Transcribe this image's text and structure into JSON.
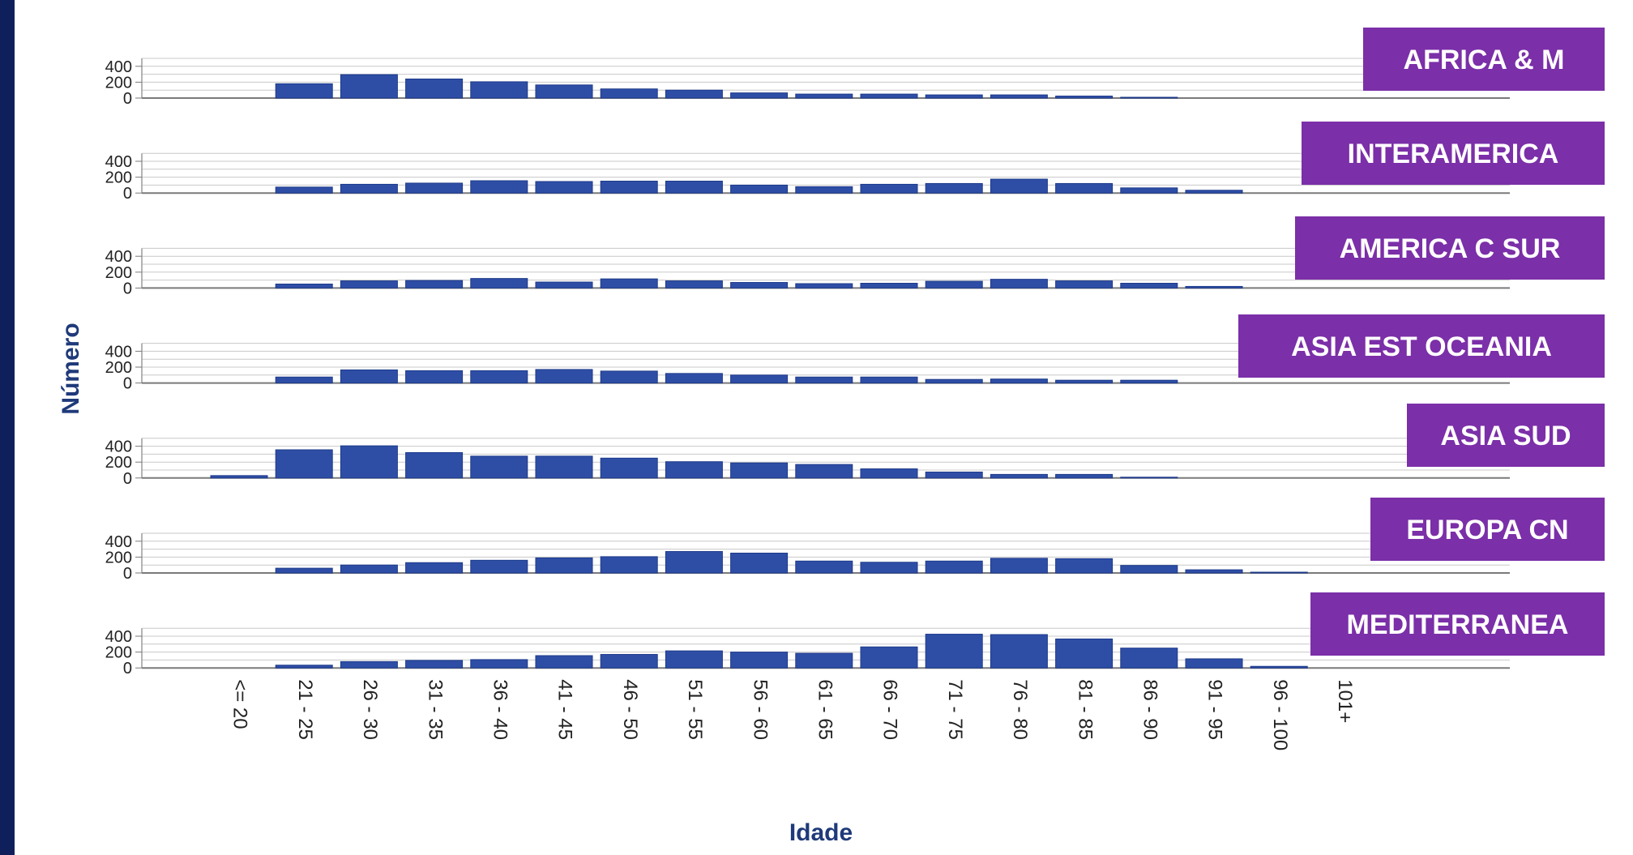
{
  "colors": {
    "bar": "#2e4ea6",
    "bar_stroke": "#1d3a8a",
    "label_bg": "#7b2fa8",
    "label_text": "#ffffff",
    "axis_title": "#1f3a7a",
    "frame": "#0f1f5c",
    "grid": "#c8c8c8"
  },
  "chart_data": {
    "type": "bar",
    "xlabel": "Idade",
    "ylabel": "Número",
    "categories": [
      "<= 20",
      "21 - 25",
      "26 - 30",
      "31 - 35",
      "36 - 40",
      "41 - 45",
      "46 - 50",
      "51 - 55",
      "56 - 60",
      "61 - 65",
      "66 - 70",
      "71 - 75",
      "76 - 80",
      "81 - 85",
      "86 - 90",
      "91 - 95",
      "96 - 100",
      "101+"
    ],
    "ylim": [
      0,
      500
    ],
    "yticks": [
      0,
      200,
      400
    ],
    "grid": true,
    "panels": [
      {
        "name": "AFRICA & M",
        "values": [
          0,
          180,
          295,
          240,
          205,
          165,
          115,
          100,
          65,
          50,
          50,
          40,
          40,
          25,
          10,
          0,
          0,
          0
        ]
      },
      {
        "name": "INTERAMERICA",
        "values": [
          0,
          75,
          110,
          125,
          155,
          145,
          150,
          150,
          100,
          80,
          110,
          120,
          175,
          120,
          65,
          35,
          0,
          0
        ]
      },
      {
        "name": "AMERICA C SUR",
        "values": [
          0,
          50,
          90,
          95,
          120,
          75,
          115,
          90,
          70,
          55,
          60,
          85,
          110,
          90,
          60,
          20,
          0,
          0
        ]
      },
      {
        "name": "ASIA EST OCEANIA",
        "values": [
          0,
          75,
          165,
          155,
          155,
          170,
          150,
          120,
          100,
          75,
          75,
          45,
          50,
          35,
          35,
          0,
          0,
          0
        ]
      },
      {
        "name": "ASIA SUD",
        "values": [
          30,
          355,
          405,
          320,
          275,
          275,
          250,
          205,
          190,
          170,
          115,
          75,
          45,
          45,
          10,
          0,
          0,
          0
        ]
      },
      {
        "name": "EUROPA CN",
        "values": [
          0,
          60,
          100,
          130,
          160,
          190,
          205,
          270,
          250,
          150,
          135,
          150,
          185,
          180,
          95,
          40,
          10,
          0
        ]
      },
      {
        "name": "MEDITERRANEA",
        "values": [
          0,
          35,
          80,
          95,
          105,
          155,
          170,
          215,
          200,
          185,
          265,
          425,
          420,
          365,
          250,
          115,
          20,
          0
        ]
      }
    ]
  }
}
